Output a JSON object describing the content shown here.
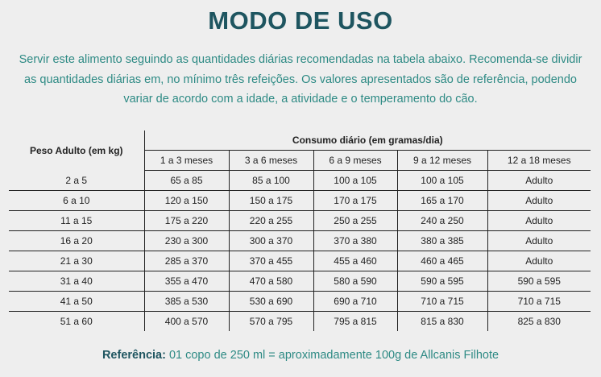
{
  "title": "MODO DE USO",
  "intro": [
    "Servir este alimento seguindo as quantidades diárias recomendadas na tabela abaixo. Recomenda-se dividir",
    "as quantidades diárias em, no mínimo três refeições. Os valores apresentados são de referência, podendo",
    "variar de acordo com a idade, a atividade e o temperamento do cão."
  ],
  "table": {
    "weight_header": "Peso Adulto (em kg)",
    "consumption_header": "Consumo diário (em gramas/dia)",
    "age_columns": [
      "1 a 3 meses",
      "3 a 6 meses",
      "6 a 9 meses",
      "9 a 12 meses",
      "12 a 18 meses"
    ],
    "rows": [
      {
        "weight": "2 a 5",
        "values": [
          "65 a 85",
          "85 a 100",
          "100 a 105",
          "100 a 105",
          "Adulto"
        ]
      },
      {
        "weight": "6 a 10",
        "values": [
          "120 a 150",
          "150 a 175",
          "170 a 175",
          "165 a 170",
          "Adulto"
        ]
      },
      {
        "weight": "11 a 15",
        "values": [
          "175 a 220",
          "220 a 255",
          "250 a 255",
          "240 a 250",
          "Adulto"
        ]
      },
      {
        "weight": "16 a 20",
        "values": [
          "230 a 300",
          "300 a 370",
          "370 a 380",
          "380 a 385",
          "Adulto"
        ]
      },
      {
        "weight": "21 a 30",
        "values": [
          "285 a 370",
          "370 a 455",
          "455 a 460",
          "460 a 465",
          "Adulto"
        ]
      },
      {
        "weight": "31 a 40",
        "values": [
          "355 a 470",
          "470 a 580",
          "580 a 590",
          "590 a 595",
          "590 a 595"
        ]
      },
      {
        "weight": "41 a 50",
        "values": [
          "385 a 530",
          "530 a 690",
          "690 a 710",
          "710 a 715",
          "710 a 715"
        ]
      },
      {
        "weight": "51 a 60",
        "values": [
          "400 a 570",
          "570 a 795",
          "795 a 815",
          "815 a 830",
          "825 a 830"
        ]
      }
    ]
  },
  "reference": {
    "label": "Referência:",
    "text": " 01 copo de 250 ml = aproximadamente 100g de Allcanis Filhote"
  },
  "colors": {
    "title": "#1e5560",
    "body_text": "#2d8a84",
    "background": "#eeeeee"
  }
}
